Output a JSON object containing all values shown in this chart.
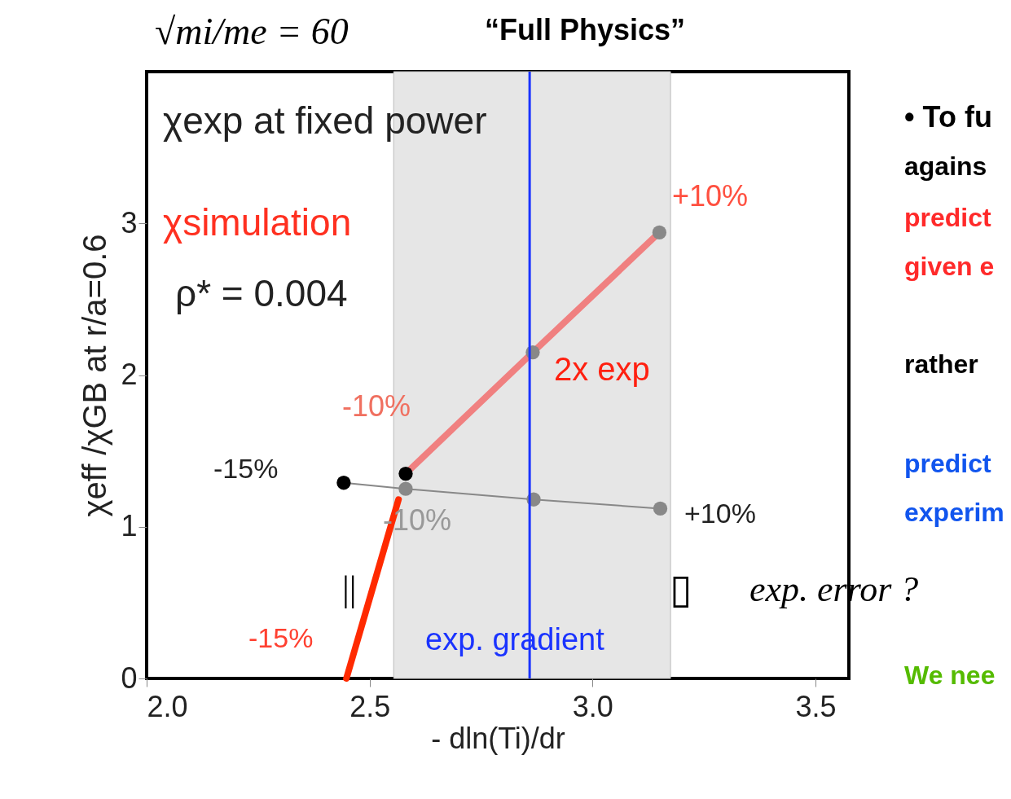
{
  "chart_data": {
    "type": "line",
    "title": "√mi/me = 60",
    "subtitle": "“Full Physics”",
    "xlabel": "- dln(Ti)/dr",
    "ylabel": "χeff /χGB at r/a=0.6",
    "xlim": [
      2.0,
      3.575
    ],
    "ylim": [
      0,
      4.0
    ],
    "xticks": [
      {
        "value": 2.0,
        "label": "2.0"
      },
      {
        "value": 2.5,
        "label": "2.5"
      },
      {
        "value": 3.0,
        "label": "3.0"
      },
      {
        "value": 3.5,
        "label": "3.5"
      }
    ],
    "yticks": [
      0,
      1,
      2,
      3
    ],
    "grid": false,
    "series": [
      {
        "color": "#888888",
        "colors": [
          "#000000",
          "#888888",
          "#888888",
          "#888888"
        ],
        "marker": "circle",
        "x": [
          2.442,
          2.581,
          2.868,
          3.152
        ],
        "values": [
          1.29,
          1.25,
          1.18,
          1.12
        ]
      },
      {
        "color": "#f08080",
        "marker": "circle",
        "x": [
          2.581,
          2.866,
          3.15
        ],
        "values": [
          1.35,
          2.15,
          2.94
        ]
      },
      {
        "color": "#ff2a00",
        "marker": "none",
        "x": [
          2.448,
          2.565
        ],
        "values": [
          0,
          1.18
        ]
      }
    ],
    "bands": [
      {
        "axis": "x",
        "from": 2.554,
        "to": 3.175,
        "color": "#e6e6e6"
      }
    ],
    "ref_lines": [
      {
        "axis": "x",
        "value": 2.859,
        "color": "#1a33ff"
      }
    ],
    "annotations": [
      "χexp at fixed power",
      "χsimulation",
      "ρ* = 0.004",
      "+10%",
      "2x exp",
      "-10%",
      "-15%",
      "-10%",
      "+10%",
      "-15%",
      "exp. gradient",
      "||",
      "▯",
      "exp. error ?",
      "• To fu",
      "agains",
      "predict",
      "given e",
      "rather",
      "predict",
      "experim",
      "We nee"
    ]
  }
}
